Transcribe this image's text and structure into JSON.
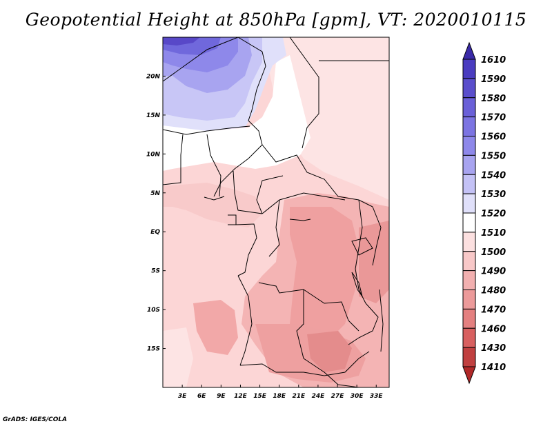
{
  "title": "Geopotential Height at 850hPa [gpm], VT: 2020010115",
  "footer": "GrADS: IGES/COLA",
  "map": {
    "lon_range": [
      0,
      35
    ],
    "lat_range": [
      -20,
      25
    ],
    "lat_ticks": [
      "20N",
      "15N",
      "10N",
      "5N",
      "EQ",
      "5S",
      "10S",
      "15S"
    ],
    "lat_tick_values": [
      20,
      15,
      10,
      5,
      0,
      -5,
      -10,
      -15
    ],
    "lon_ticks": [
      "3E",
      "6E",
      "9E",
      "12E",
      "15E",
      "18E",
      "21E",
      "24E",
      "27E",
      "30E",
      "33E"
    ],
    "lon_tick_values": [
      3,
      6,
      9,
      12,
      15,
      18,
      21,
      24,
      27,
      30,
      33
    ]
  },
  "colorbar": {
    "labels": [
      "1610",
      "1590",
      "1580",
      "1570",
      "1560",
      "1550",
      "1540",
      "1530",
      "1520",
      "1510",
      "1500",
      "1490",
      "1480",
      "1470",
      "1460",
      "1430",
      "1410"
    ],
    "colors": [
      "#3a2aa8",
      "#4a3cc0",
      "#5a4ecc",
      "#6a60d8",
      "#7c74e2",
      "#8e88ea",
      "#a8a4f0",
      "#c4c2f6",
      "#e0e0fa",
      "#ffffff",
      "#fce0e0",
      "#f8c8c8",
      "#f2b0b0",
      "#ec9a9a",
      "#e48080",
      "#d86060",
      "#c04040",
      "#b02828"
    ]
  }
}
